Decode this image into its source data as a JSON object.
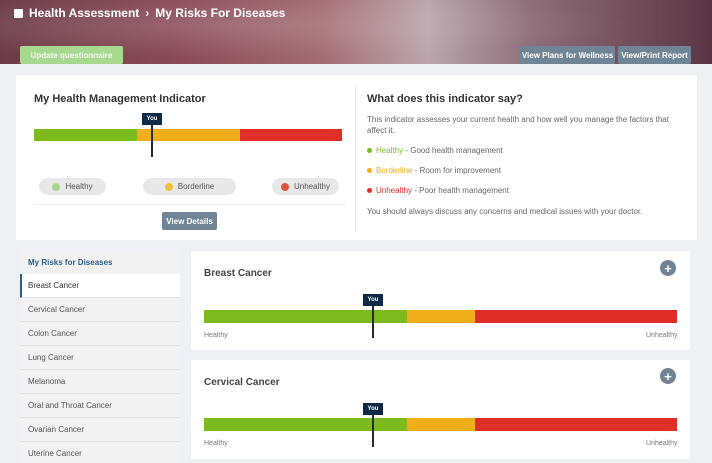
{
  "breadcrumb": {
    "home": "Health Assessment",
    "current": "My Risks For Diseases"
  },
  "buttons": {
    "update": "Update questionnaire",
    "plans": "View Plans for Wellness",
    "report": "View/Print Report",
    "details": "View Details"
  },
  "indicator": {
    "title": "My Health Management Indicator",
    "you_label": "You",
    "you_position_pct": 38,
    "legend": [
      {
        "label": "Healthy",
        "color": "#a6d98f"
      },
      {
        "label": "Borderline",
        "color": "#efc13a"
      },
      {
        "label": "Unhealthy",
        "color": "#e0533a"
      }
    ]
  },
  "explain": {
    "title": "What does this indicator say?",
    "description": "This indicator assesses your current health and how well you manage the factors that affect it.",
    "items": [
      {
        "term": "Healthy",
        "meaning": " - Good health management",
        "color": "#7dba1d"
      },
      {
        "term": "Borderline",
        "meaning": " - Room for improvement",
        "color": "#efae1a"
      },
      {
        "term": "Unhealthy",
        "meaning": " - Poor health management",
        "color": "#de2e27"
      }
    ],
    "footer": "You should always discuss any concerns and medical issues with your doctor."
  },
  "sidebar": {
    "title": "My Risks for Diseases",
    "items": [
      "Breast Cancer",
      "Cervical Cancer",
      "Colon Cancer",
      "Lung Cancer",
      "Melanoma",
      "Oral and Throat Cancer",
      "Ovarian Cancer",
      "Uterine Cancer"
    ]
  },
  "risks": [
    {
      "name": "Breast Cancer",
      "you_label": "You",
      "you_position_pct": 36,
      "low_label": "Healthy",
      "high_label": "Unhealthy"
    },
    {
      "name": "Cervical Cancer",
      "you_label": "You",
      "you_position_pct": 36,
      "low_label": "Healthy",
      "high_label": "Unhealthy"
    }
  ],
  "colors": {
    "healthy": "#7dba1d",
    "borderline": "#efae1a",
    "unhealthy": "#de2e27",
    "accent": "#2e5d8a",
    "button": "#6f8596"
  }
}
